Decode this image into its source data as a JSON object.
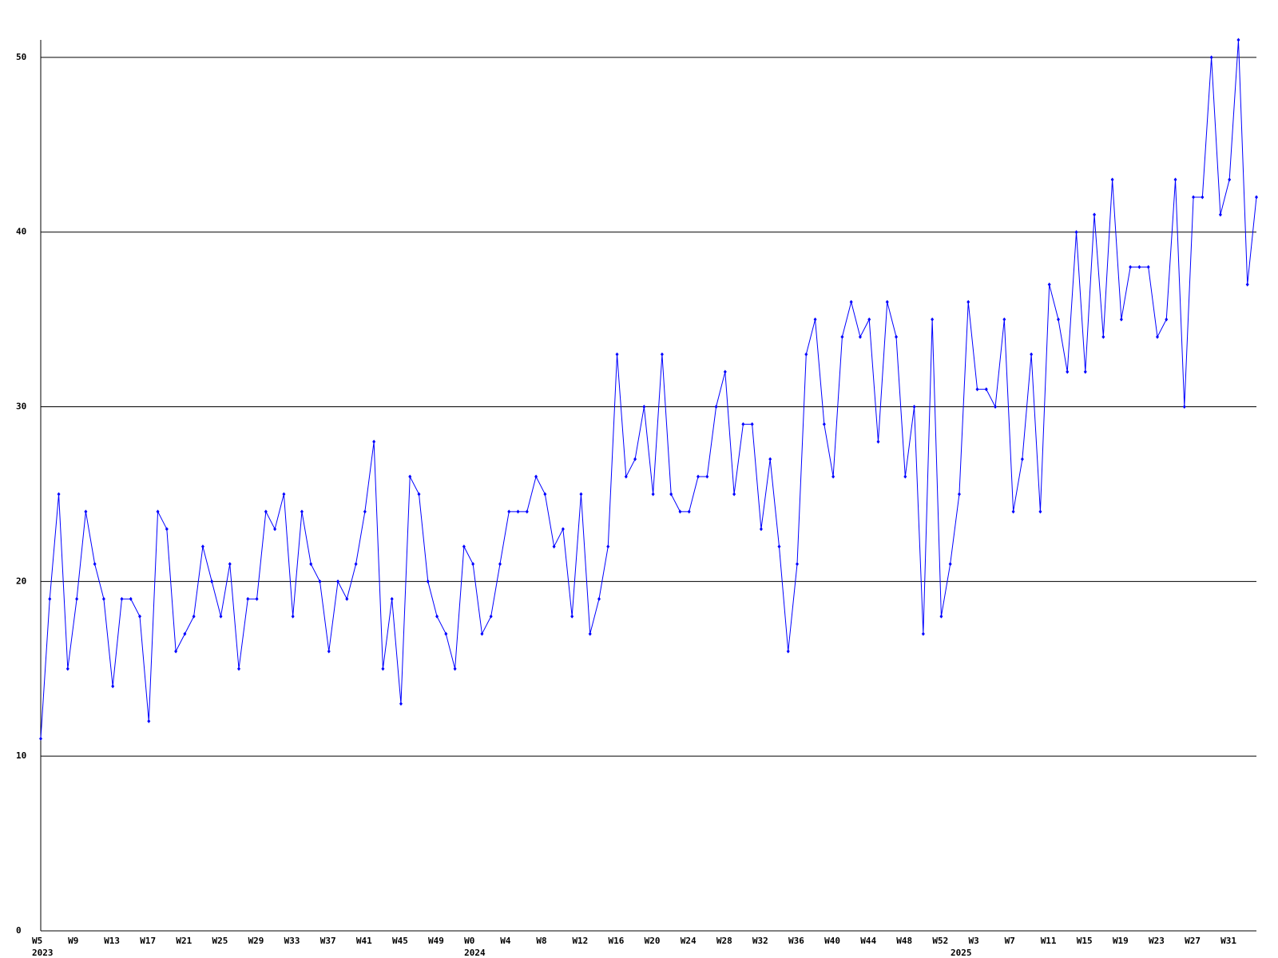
{
  "chart_data": {
    "type": "line",
    "color": "#0000ff",
    "grid": true,
    "categories": [
      "W5",
      null,
      null,
      null,
      "W9",
      null,
      null,
      null,
      "W13",
      null,
      null,
      null,
      "W17",
      null,
      null,
      null,
      "W21",
      null,
      null,
      null,
      "W25",
      null,
      null,
      null,
      "W29",
      null,
      null,
      null,
      "W33",
      null,
      null,
      null,
      "W37",
      null,
      null,
      null,
      "W41",
      null,
      null,
      null,
      "W45",
      null,
      null,
      null,
      "W49",
      null,
      null,
      null,
      "W0",
      null,
      null,
      null,
      "W4",
      null,
      null,
      null,
      "W8",
      null,
      null,
      null,
      "W12",
      null,
      null,
      null,
      "W16",
      null,
      null,
      null,
      "W20",
      null,
      null,
      null,
      "W24",
      null,
      null,
      null,
      "W28",
      null,
      null,
      null,
      "W32",
      null,
      null,
      null,
      "W36",
      null,
      null,
      null,
      "W40",
      null,
      null,
      null,
      "W44",
      null,
      null,
      null,
      "W48",
      null,
      null,
      null,
      "W52",
      null,
      null,
      null,
      "W3",
      null,
      null,
      null,
      "W7",
      null,
      null,
      null,
      "W11",
      null,
      null,
      null,
      "W15",
      null,
      null,
      null,
      "W19",
      null,
      null,
      null,
      "W23",
      null,
      null,
      null,
      "W27",
      null,
      null,
      null,
      "W31",
      null,
      null,
      null
    ],
    "x_sublabels": [
      "2023",
      null,
      null,
      null,
      null,
      null,
      null,
      null,
      null,
      null,
      null,
      null,
      null,
      null,
      null,
      null,
      null,
      null,
      null,
      null,
      null,
      null,
      null,
      null,
      null,
      null,
      null,
      null,
      null,
      null,
      null,
      null,
      null,
      null,
      null,
      null,
      null,
      null,
      null,
      null,
      null,
      null,
      null,
      null,
      null,
      null,
      null,
      null,
      "2024",
      null,
      null,
      null,
      null,
      null,
      null,
      null,
      null,
      null,
      null,
      null,
      null,
      null,
      null,
      null,
      null,
      null,
      null,
      null,
      null,
      null,
      null,
      null,
      null,
      null,
      null,
      null,
      null,
      null,
      null,
      null,
      null,
      null,
      null,
      null,
      null,
      null,
      null,
      null,
      null,
      null,
      null,
      null,
      null,
      null,
      null,
      null,
      null,
      null,
      null,
      null,
      null,
      null,
      "2025",
      null,
      null,
      null,
      null,
      null,
      null,
      null,
      null,
      null,
      null,
      null,
      null,
      null,
      null,
      null,
      null,
      null,
      null,
      null,
      null,
      null,
      null,
      null,
      null,
      null,
      null,
      null,
      null,
      null,
      null,
      null,
      null,
      null
    ],
    "values": [
      11,
      19,
      25,
      15,
      19,
      24,
      21,
      19,
      14,
      19,
      19,
      18,
      12,
      24,
      23,
      16,
      17,
      18,
      22,
      20,
      18,
      21,
      15,
      19,
      19,
      24,
      23,
      25,
      18,
      24,
      21,
      20,
      16,
      20,
      19,
      21,
      24,
      28,
      15,
      19,
      13,
      26,
      25,
      20,
      18,
      17,
      15,
      22,
      21,
      17,
      18,
      21,
      24,
      24,
      24,
      26,
      25,
      22,
      23,
      18,
      25,
      17,
      19,
      22,
      33,
      26,
      27,
      30,
      25,
      33,
      25,
      24,
      24,
      26,
      26,
      30,
      32,
      25,
      29,
      29,
      23,
      27,
      22,
      16,
      21,
      33,
      35,
      29,
      26,
      34,
      36,
      34,
      35,
      28,
      36,
      34,
      26,
      30,
      17,
      35,
      18,
      21,
      25,
      36,
      31,
      31,
      30,
      35,
      24,
      27,
      33,
      24,
      37,
      35,
      32,
      40,
      32,
      41,
      34,
      43,
      35,
      38,
      38,
      38,
      34,
      35,
      43,
      30,
      42,
      42,
      50,
      41,
      43,
      51,
      37,
      42
    ],
    "ylim": [
      0,
      51
    ],
    "yticks": [
      0,
      10,
      20,
      30,
      40,
      50
    ]
  }
}
